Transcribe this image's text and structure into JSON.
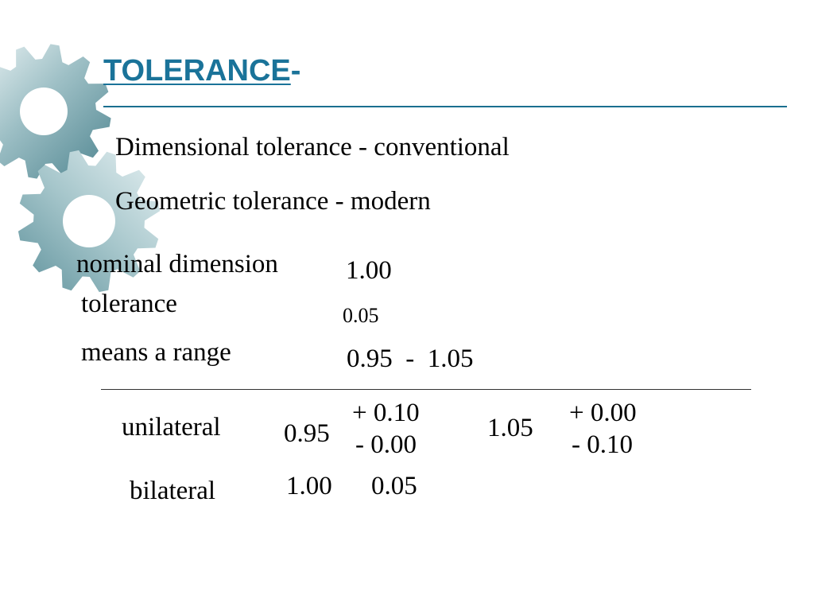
{
  "slide": {
    "title": "TOLERANCE",
    "title_suffix": "-",
    "bullets": [
      "Dimensional tolerance - conventional",
      "Geometric tolerance - modern"
    ],
    "nominal_label": "nominal dimension",
    "nominal_value": "1.00",
    "tolerance_label": "tolerance",
    "tolerance_value": "0.05",
    "range_label": "means a range",
    "range_value": "0.95  -  1.05",
    "unilateral": {
      "label": "unilateral",
      "left_base": "0.95",
      "left_upper": "+ 0.10",
      "left_lower": "- 0.00",
      "right_base": "1.05",
      "right_upper": "+ 0.00",
      "right_lower": "- 0.10"
    },
    "bilateral": {
      "label": "bilateral",
      "base": "1.00",
      "tol": "0.05"
    }
  },
  "colors": {
    "title": "#1a7399",
    "gear_light": "#c8dde0",
    "gear_dark": "#5b8e98"
  },
  "decorations": [
    "gear-icon",
    "gear-icon"
  ]
}
